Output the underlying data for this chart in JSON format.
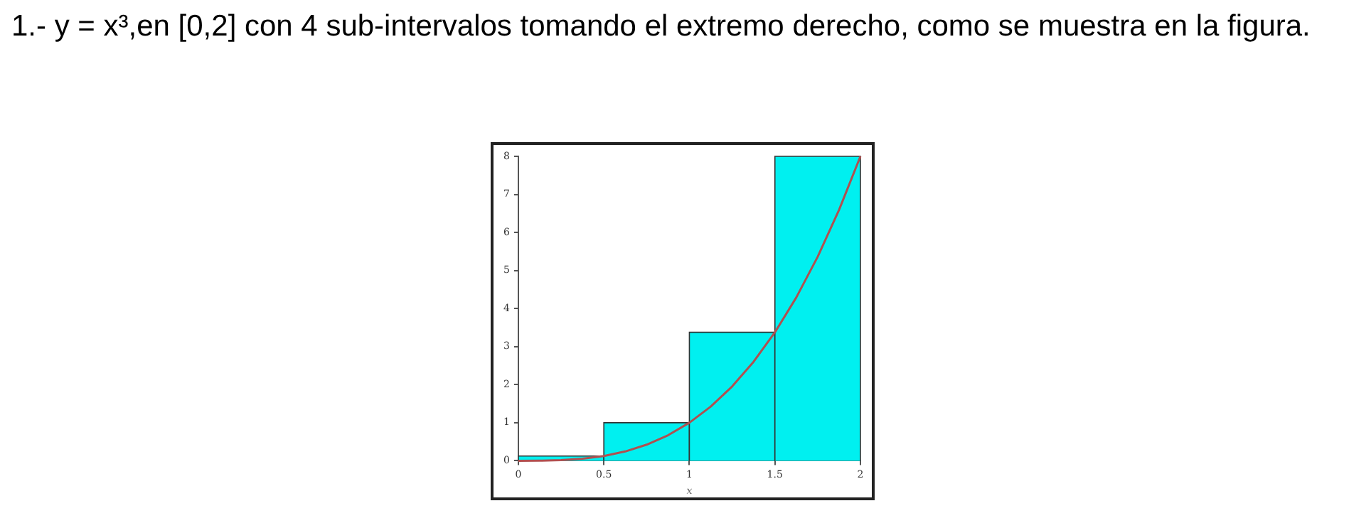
{
  "chart_data": {
    "type": "histogram",
    "title": "1.- y = x³,en [0,2] con 4 sub-intervalos tomando el extremo derecho, como se muestra en la figura.",
    "xlabel": "x",
    "xlim": [
      0,
      2
    ],
    "xticks": [
      0,
      0.5,
      1,
      1.5,
      2
    ],
    "ylim": [
      0,
      8
    ],
    "yticks": [
      0,
      1,
      2,
      3,
      4,
      5,
      6,
      7,
      8
    ],
    "grid": false,
    "legend": false,
    "series": [
      {
        "type": "histogram",
        "bins": [
          0,
          0.5,
          1,
          1.5,
          2
        ],
        "values": [
          0.125,
          1,
          3.375,
          8
        ],
        "color": "#00f0f0"
      },
      {
        "type": "line",
        "color": "#b05050",
        "x": [
          0,
          0.125,
          0.25,
          0.375,
          0.5,
          0.625,
          0.75,
          0.875,
          1,
          1.125,
          1.25,
          1.375,
          1.5,
          1.625,
          1.75,
          1.875,
          2
        ],
        "values": [
          0,
          0.002,
          0.016,
          0.053,
          0.125,
          0.244,
          0.422,
          0.67,
          1,
          1.424,
          1.953,
          2.6,
          3.375,
          4.291,
          5.359,
          6.592,
          8
        ]
      }
    ]
  }
}
